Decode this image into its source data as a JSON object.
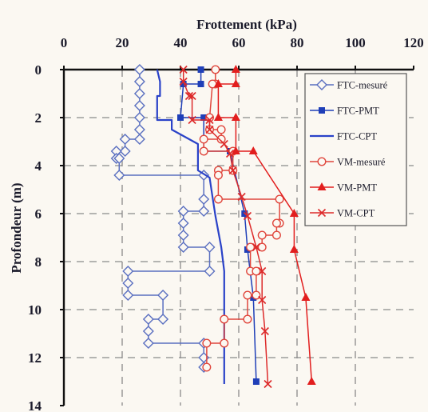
{
  "chart_data": {
    "type": "line",
    "title": "Frottement (kPa)",
    "xlabel": "Frottement (kPa)",
    "ylabel": "Profondeur (m)",
    "xlim": [
      0,
      120
    ],
    "ylim": [
      0,
      14
    ],
    "y_inverted": true,
    "x_axis_position": "top",
    "grid": true,
    "legend_position": "top-right",
    "x_ticks": [
      "0",
      "20",
      "40",
      "60",
      "80",
      "100",
      "120"
    ],
    "y_ticks": [
      "0",
      "2",
      "4",
      "6",
      "8",
      "10",
      "12",
      "14"
    ],
    "series": [
      {
        "name": "FTC-mesuré",
        "color": "#5a6fc0",
        "marker": "diamond-open",
        "line": "solid",
        "points": [
          [
            26,
            0
          ],
          [
            26,
            0.5
          ],
          [
            26,
            1
          ],
          [
            26,
            1.5
          ],
          [
            26,
            2
          ],
          [
            26,
            2.5
          ],
          [
            26,
            2.9
          ],
          [
            21,
            2.9
          ],
          [
            21,
            3.4
          ],
          [
            18,
            3.4
          ],
          [
            18,
            3.7
          ],
          [
            19,
            3.7
          ],
          [
            19,
            4.4
          ],
          [
            48,
            4.4
          ],
          [
            48,
            5.4
          ],
          [
            48,
            5.9
          ],
          [
            41,
            5.9
          ],
          [
            41,
            6.4
          ],
          [
            41,
            6.9
          ],
          [
            41,
            7.4
          ],
          [
            50,
            7.4
          ],
          [
            50,
            8.4
          ],
          [
            22,
            8.4
          ],
          [
            22,
            8.9
          ],
          [
            22,
            9.4
          ],
          [
            34,
            9.4
          ],
          [
            34,
            10.4
          ],
          [
            29,
            10.4
          ],
          [
            29,
            10.9
          ],
          [
            29,
            11.4
          ],
          [
            48,
            11.4
          ],
          [
            48,
            12
          ],
          [
            48,
            12.4
          ]
        ]
      },
      {
        "name": "FTC-PMT",
        "color": "#1f3fb8",
        "marker": "square-filled",
        "line": "solid",
        "points": [
          [
            47,
            0
          ],
          [
            47,
            0.6
          ],
          [
            41,
            0.6
          ],
          [
            40,
            2
          ],
          [
            48,
            2
          ],
          [
            48,
            3.4
          ],
          [
            57,
            3.4
          ],
          [
            62,
            6
          ],
          [
            63,
            7.5
          ],
          [
            65,
            9.5
          ],
          [
            66,
            13
          ]
        ]
      },
      {
        "name": "FTC-CPT",
        "color": "#2a42c8",
        "marker": "none",
        "line": "solid",
        "points": [
          [
            32,
            0
          ],
          [
            33,
            0.5
          ],
          [
            33,
            1.1
          ],
          [
            32,
            1.1
          ],
          [
            32,
            2.1
          ],
          [
            37,
            2.1
          ],
          [
            37,
            2.5
          ],
          [
            46,
            3.1
          ],
          [
            46,
            4.2
          ],
          [
            50,
            4.5
          ],
          [
            51,
            5.3
          ],
          [
            52,
            6.1
          ],
          [
            54,
            7.4
          ],
          [
            55,
            8.4
          ],
          [
            55,
            9.6
          ],
          [
            55,
            10.9
          ],
          [
            55,
            13.1
          ]
        ]
      },
      {
        "name": "VM-mesuré",
        "color": "#e0463c",
        "marker": "circle-open",
        "line": "solid",
        "points": [
          [
            52,
            0
          ],
          [
            52,
            0.6
          ],
          [
            51,
            0.6
          ],
          [
            50,
            2
          ],
          [
            50,
            2.5
          ],
          [
            54,
            2.5
          ],
          [
            54,
            2.9
          ],
          [
            48,
            2.9
          ],
          [
            48,
            3.4
          ],
          [
            58,
            3.4
          ],
          [
            58,
            4.2
          ],
          [
            53,
            4.2
          ],
          [
            53,
            4.4
          ],
          [
            53,
            5.4
          ],
          [
            74,
            5.4
          ],
          [
            74,
            6.4
          ],
          [
            73,
            6.4
          ],
          [
            73,
            6.9
          ],
          [
            68,
            6.9
          ],
          [
            68,
            7.4
          ],
          [
            64,
            7.4
          ],
          [
            64,
            8.4
          ],
          [
            66,
            8.4
          ],
          [
            66,
            9.4
          ],
          [
            63,
            9.4
          ],
          [
            63,
            10.4
          ],
          [
            55,
            10.4
          ],
          [
            55,
            11.4
          ],
          [
            49,
            11.4
          ],
          [
            49,
            12.4
          ]
        ]
      },
      {
        "name": "VM-PMT",
        "color": "#e21e1e",
        "marker": "triangle-filled",
        "line": "solid",
        "points": [
          [
            59,
            0
          ],
          [
            59,
            0.6
          ],
          [
            53,
            0.6
          ],
          [
            53,
            2
          ],
          [
            59,
            2
          ],
          [
            59,
            3.4
          ],
          [
            65,
            3.4
          ],
          [
            79,
            6
          ],
          [
            79,
            7.5
          ],
          [
            83,
            9.5
          ],
          [
            85,
            13
          ]
        ]
      },
      {
        "name": "VM-CPT",
        "color": "#dd2a2a",
        "marker": "x",
        "line": "solid",
        "points": [
          [
            41,
            0
          ],
          [
            41,
            0.5
          ],
          [
            43,
            1.1
          ],
          [
            44,
            1.1
          ],
          [
            44,
            2.1
          ],
          [
            50,
            2.1
          ],
          [
            50,
            2.5
          ],
          [
            55,
            3.1
          ],
          [
            57,
            3.5
          ],
          [
            58,
            4.2
          ],
          [
            61,
            5.3
          ],
          [
            63,
            6.1
          ],
          [
            66,
            7.4
          ],
          [
            68,
            8.4
          ],
          [
            68,
            9.6
          ],
          [
            69,
            10.9
          ],
          [
            70,
            13.1
          ]
        ]
      }
    ]
  }
}
